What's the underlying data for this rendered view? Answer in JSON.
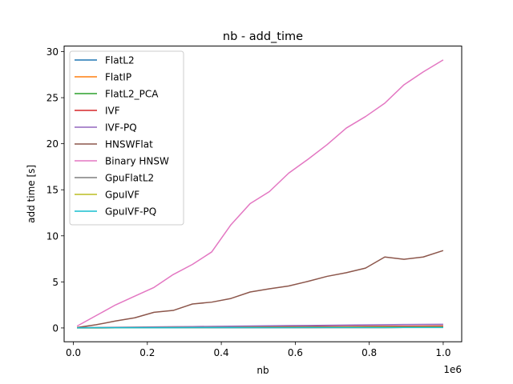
{
  "chart_data": {
    "type": "line",
    "title": "nb - add_time",
    "xlabel": "nb",
    "ylabel": "add time [s]",
    "x_offset_label": "1e6",
    "xlim": [
      -25000,
      1050000
    ],
    "ylim": [
      -1.5,
      30.6
    ],
    "xticks": [
      0.0,
      0.2,
      0.4,
      0.6,
      0.8,
      1.0
    ],
    "xtick_labels": [
      "0.0",
      "0.2",
      "0.4",
      "0.6",
      "0.8",
      "1.0"
    ],
    "yticks": [
      0,
      5,
      10,
      15,
      20,
      25,
      30
    ],
    "ytick_labels": [
      "0",
      "5",
      "10",
      "15",
      "20",
      "25",
      "30"
    ],
    "grid": false,
    "legend_position": "upper-left",
    "x": [
      10000,
      62000,
      114000,
      166000,
      218000,
      270000,
      322000,
      374000,
      426000,
      478000,
      530000,
      582000,
      634000,
      686000,
      738000,
      790000,
      842000,
      894000,
      946000,
      1000000
    ],
    "series": [
      {
        "name": "FlatL2",
        "color": "#1f77b4",
        "values": [
          0.003,
          0.006,
          0.01,
          0.013,
          0.016,
          0.019,
          0.022,
          0.025,
          0.028,
          0.031,
          0.034,
          0.037,
          0.04,
          0.043,
          0.046,
          0.049,
          0.052,
          0.055,
          0.058,
          0.06
        ]
      },
      {
        "name": "FlatIP",
        "color": "#ff7f0e",
        "values": [
          0.003,
          0.006,
          0.01,
          0.013,
          0.016,
          0.019,
          0.022,
          0.025,
          0.028,
          0.031,
          0.034,
          0.037,
          0.04,
          0.043,
          0.046,
          0.049,
          0.052,
          0.055,
          0.058,
          0.06
        ]
      },
      {
        "name": "FlatL2_PCA",
        "color": "#2ca02c",
        "values": [
          0.01,
          0.02,
          0.03,
          0.04,
          0.05,
          0.06,
          0.07,
          0.08,
          0.09,
          0.1,
          0.11,
          0.12,
          0.13,
          0.14,
          0.15,
          0.16,
          0.17,
          0.18,
          0.19,
          0.2
        ]
      },
      {
        "name": "IVF",
        "color": "#d62728",
        "values": [
          0.02,
          0.03,
          0.04,
          0.05,
          0.06,
          0.07,
          0.08,
          0.09,
          0.1,
          0.11,
          0.12,
          0.13,
          0.14,
          0.15,
          0.16,
          0.17,
          0.18,
          0.19,
          0.2,
          0.21
        ]
      },
      {
        "name": "IVF-PQ",
        "color": "#9467bd",
        "values": [
          0.03,
          0.05,
          0.07,
          0.09,
          0.11,
          0.13,
          0.15,
          0.17,
          0.19,
          0.21,
          0.23,
          0.25,
          0.27,
          0.29,
          0.31,
          0.33,
          0.35,
          0.37,
          0.39,
          0.4
        ]
      },
      {
        "name": "HNSWFlat",
        "color": "#8c564b",
        "values": [
          0.05,
          0.35,
          0.75,
          1.1,
          1.7,
          1.9,
          2.6,
          2.8,
          3.2,
          3.9,
          4.25,
          4.55,
          5.05,
          5.6,
          6.0,
          6.5,
          7.7,
          7.45,
          7.7,
          8.4
        ]
      },
      {
        "name": "Binary HNSW",
        "color": "#e377c2",
        "values": [
          0.2,
          1.35,
          2.5,
          3.45,
          4.4,
          5.8,
          6.9,
          8.25,
          11.2,
          13.5,
          14.8,
          16.8,
          18.3,
          19.9,
          21.7,
          22.95,
          24.4,
          26.4,
          27.8,
          29.1
        ]
      },
      {
        "name": "GpuFlatL2",
        "color": "#7f7f7f",
        "values": [
          0.01,
          0.012,
          0.014,
          0.016,
          0.018,
          0.02,
          0.022,
          0.024,
          0.026,
          0.028,
          0.03,
          0.032,
          0.034,
          0.036,
          0.038,
          0.04,
          0.042,
          0.044,
          0.046,
          0.048
        ]
      },
      {
        "name": "GpuIVF",
        "color": "#bcbd22",
        "values": [
          0.02,
          0.025,
          0.03,
          0.035,
          0.04,
          0.045,
          0.05,
          0.055,
          0.06,
          0.065,
          0.07,
          0.075,
          0.08,
          0.085,
          0.09,
          0.095,
          0.1,
          0.105,
          0.11,
          0.115
        ]
      },
      {
        "name": "GpuIVF-PQ",
        "color": "#17becf",
        "values": [
          0.02,
          0.022,
          0.024,
          0.026,
          0.028,
          0.03,
          0.032,
          0.034,
          0.036,
          0.038,
          0.04,
          0.042,
          0.044,
          0.046,
          0.048,
          0.05,
          0.052,
          0.054,
          0.056,
          0.058
        ]
      }
    ]
  }
}
